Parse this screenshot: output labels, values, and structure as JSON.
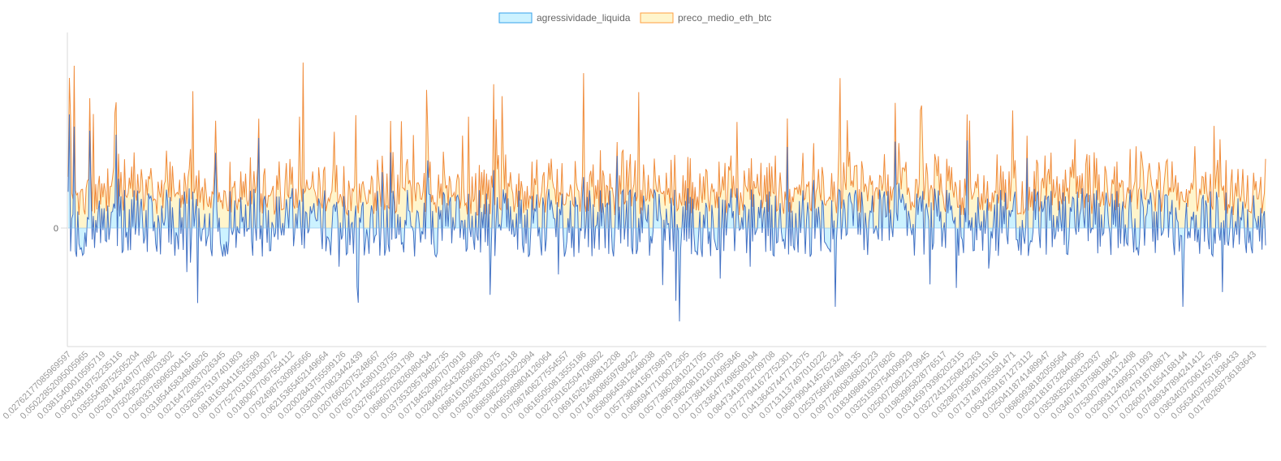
{
  "chart_data": {
    "type": "area",
    "title": "",
    "xlabel": "",
    "ylabel": "",
    "y_tick_labels": [
      "0"
    ],
    "legend_position": "top-center",
    "grid": false,
    "x_tick_labels": [
      "0.02762177085969597",
      "0.05022852095005965",
      "0.03815400010595719",
      "0.06243918752235116",
      "0.03555438752505204",
      "0.05281462497077882",
      "0.07502952098703302",
      "0.02603376996500415",
      "0.03185445834846826",
      "0.02164720837026345",
      "0.03263575197401803",
      "0.08181630411635599",
      "0.07752703103030072",
      "0.01800677067554112",
      "0.07924987530995666",
      "0.06215365452149664",
      "0.02002843755599126",
      "0.03208170823442439",
      "0.02076602075248667",
      "0.07657214580103755",
      "0.03276625052031798",
      "0.06860702826080434",
      "0.03735329579482735",
      "0.07184520907070918",
      "0.02846235432850698",
      "0.06861610366200375",
      "0.03928333016025118",
      "0.06859825005822994",
      "0.04065989804126064",
      "0.07987406277554557",
      "0.06165050813555186",
      "0.02750162504706802",
      "0.06916262498812208",
      "0.07148008659768422",
      "0.05809645812648038",
      "0.05773804156759878",
      "0.06969477100072305",
      "0.05773862081021705",
      "0.06739620810210705",
      "0.02173841604095846",
      "0.07336477498508194",
      "0.08473418792709708",
      "0.07277941672752301",
      "0.04136437447712075",
      "0.07131137497010222",
      "0.06879904145762324",
      "0.02537566674889135",
      "0.09772800836820223",
      "0.01834986812076826",
      "0.03251593754009929",
      "0.02500720822179945",
      "0.01983995828776517",
      "0.03145979396202315",
      "0.03272431250842263",
      "0.03286795836115116",
      "0.07137497935581471",
      "0.06342591671273112",
      "0.02504118741489947",
      "0.06869938182059564",
      "0.02921816732840095",
      "0.03538352068332937",
      "0.03407418758818842",
      "0.07530070841312408",
      "0.02993124995071993",
      "0.01770247918708871",
      "0.02600741654168144",
      "0.07689347894241412",
      "0.03634037506145736",
      "0.05634037501836433",
      "0.01780268736183643"
    ],
    "series": [
      {
        "name": "agressividade_liquida",
        "color": "#4472c4",
        "fill": "#ccf2ff",
        "swatch_border": "#36a2eb"
      },
      {
        "name": "preco_medio_eth_btc",
        "color": "#f08c3c",
        "fill": "#fff5cc",
        "swatch_border": "#ff9f40"
      }
    ]
  }
}
